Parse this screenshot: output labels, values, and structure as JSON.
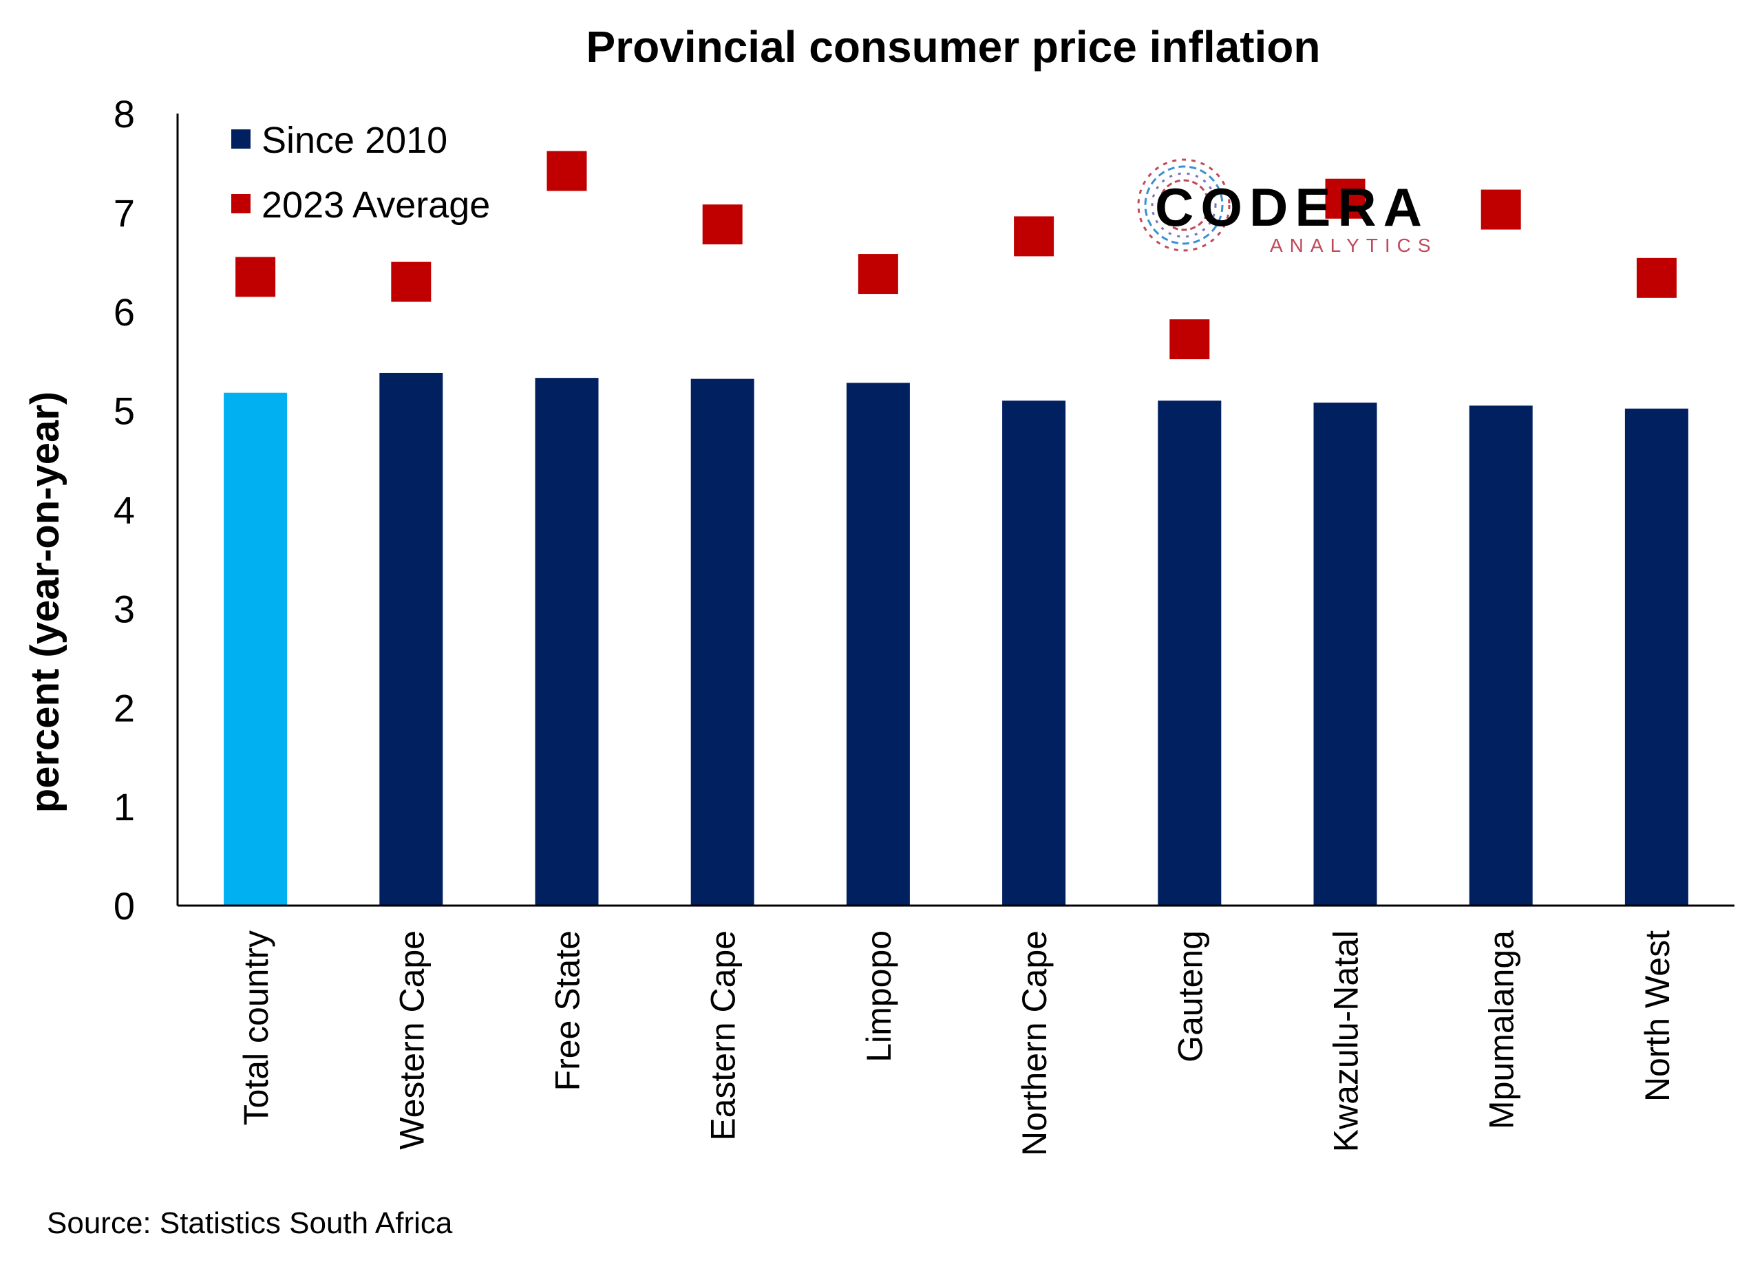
{
  "chart_data": {
    "type": "bar",
    "title": "Provincial consumer price inflation",
    "ylabel": "percent (year-on-year)",
    "xlabel": "",
    "ylim": [
      0,
      8
    ],
    "yticks": [
      0,
      1,
      2,
      3,
      4,
      5,
      6,
      7,
      8
    ],
    "categories": [
      "Total country",
      "Western Cape",
      "Free State",
      "Eastern Cape",
      "Limpopo",
      "Northern Cape",
      "Gauteng",
      "Kwazulu-Natal",
      "Mpumalanga",
      "North West"
    ],
    "series": [
      {
        "name": "Since 2010",
        "kind": "bar",
        "color": "#002060",
        "highlight_color": "#00b0f0",
        "highlight_index": 0,
        "values": [
          5.18,
          5.38,
          5.33,
          5.32,
          5.28,
          5.1,
          5.1,
          5.08,
          5.05,
          5.02
        ]
      },
      {
        "name": "2023 Average",
        "kind": "marker",
        "marker": "square",
        "color": "#c00000",
        "values": [
          6.35,
          6.3,
          7.42,
          6.88,
          6.38,
          6.76,
          5.72,
          7.14,
          7.03,
          6.34
        ]
      }
    ],
    "legend": {
      "placement": "top-left"
    },
    "grid": false
  },
  "source": "Source: Statistics South Africa",
  "logo": {
    "text": "CODERA",
    "subtext": "ANALYTICS"
  }
}
